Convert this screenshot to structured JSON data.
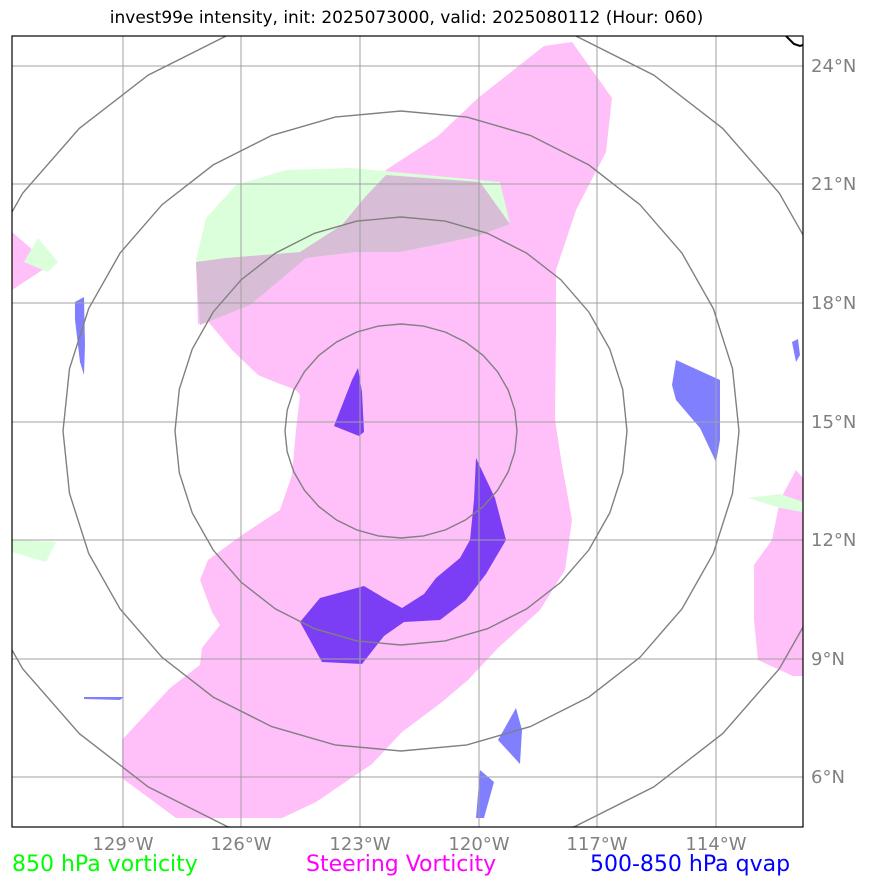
{
  "title": "invest99e intensity, init: 2025073000, valid: 2025080112 (Hour: 060)",
  "lat_labels": [
    "24°N",
    "21°N",
    "18°N",
    "15°N",
    "12°N",
    "9°N",
    "6°N"
  ],
  "lon_labels": [
    "129°W",
    "126°W",
    "123°W",
    "120°W",
    "117°W",
    "114°W"
  ],
  "legend": {
    "vort850": {
      "label": "850 hPa vorticity",
      "color": "#00ff00"
    },
    "steering": {
      "label": "Steering Vorticity",
      "color": "#ff00ff"
    },
    "qvap": {
      "label": "500-850 hPa qvap",
      "color": "#0000ff"
    }
  },
  "layers": {
    "steering_fill_color": "#ffbff9",
    "vort850_fill_color": "#dbffdb",
    "overlap_fill_color": "#d8bdd6",
    "qvap_light_color": "#8080ff",
    "qvap_dark_color": "#7b3ef5",
    "range_ring_color": "#808080",
    "grid_color": "#a0a0a0"
  }
}
